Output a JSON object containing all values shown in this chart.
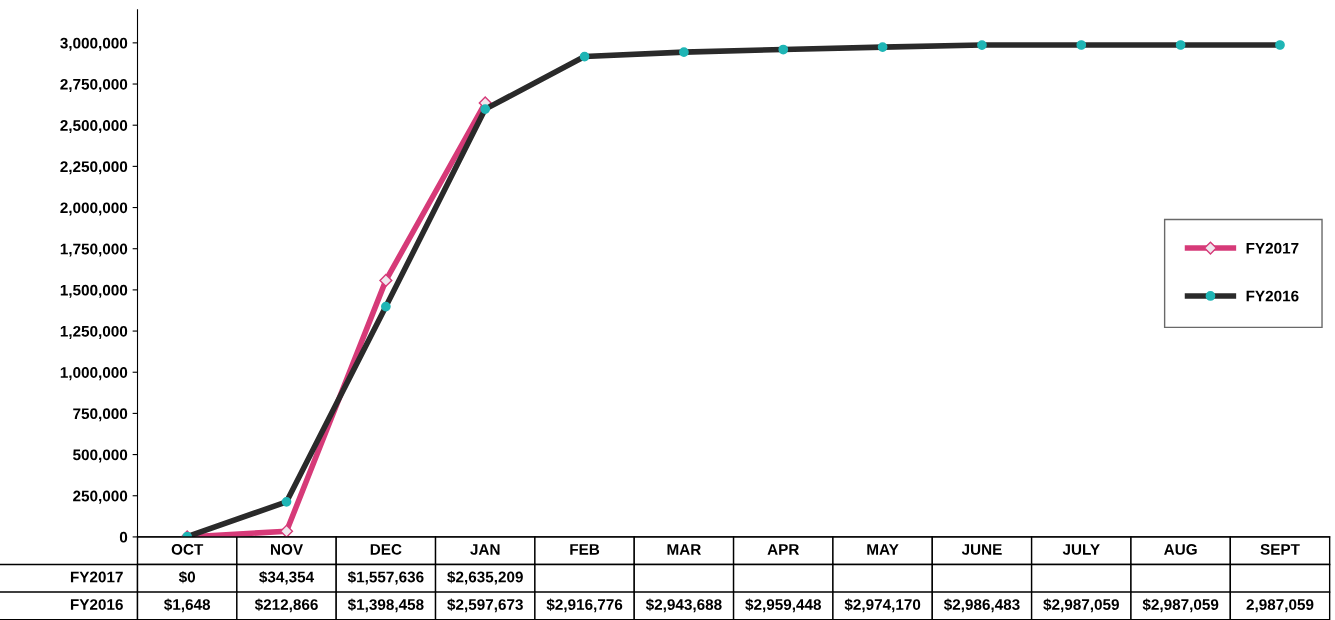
{
  "chart_data": {
    "type": "line",
    "categories": [
      "OCT",
      "NOV",
      "DEC",
      "JAN",
      "FEB",
      "MAR",
      "APR",
      "MAY",
      "JUNE",
      "JULY",
      "AUG",
      "SEPT"
    ],
    "series": [
      {
        "name": "FY2017",
        "color": "#d63a78",
        "marker": "diamond",
        "values": [
          0,
          34354,
          1557636,
          2635209,
          null,
          null,
          null,
          null,
          null,
          null,
          null,
          null
        ],
        "value_labels": [
          "$0",
          "$34,354",
          "$1,557,636",
          "$2,635,209",
          null,
          null,
          null,
          null,
          null,
          null,
          null,
          null
        ]
      },
      {
        "name": "FY2016",
        "color": "#2a2a2a",
        "marker": "circle",
        "values": [
          1648,
          212866,
          1398458,
          2597673,
          2916776,
          2943688,
          2959448,
          2974170,
          2986483,
          2987059,
          2987059,
          2987059
        ],
        "value_labels": [
          "$1,648",
          "$212,866",
          "$1,398,458",
          "$2,597,673",
          "$2,916,776",
          "$2,943,688",
          "$2,959,448",
          "$2,974,170",
          "$2,986,483",
          "$2,987,059",
          "$2,987,059",
          "2,987,059"
        ]
      }
    ],
    "ylim": [
      0,
      3200000
    ],
    "yticks": [
      0,
      {
        "value": 250000,
        "label": "250,000"
      },
      {
        "value": 500000,
        "label": "500,000"
      },
      {
        "value": 750000,
        "label": "750,000"
      },
      {
        "value": 1000000,
        "label": "1,000,000"
      },
      {
        "value": 1250000,
        "label": "1,250,000"
      },
      {
        "value": 1500000,
        "label": "1,500,000"
      },
      {
        "value": 1750000,
        "label": "1,750,000"
      },
      {
        "value": 2000000,
        "label": "2,000,000"
      },
      {
        "value": 2250000,
        "label": "2,250,000"
      },
      {
        "value": 2500000,
        "label": "2,500,000"
      },
      {
        "value": 2750000,
        "label": "2,750,000"
      },
      {
        "value": 3000000,
        "label": "3,000,000"
      }
    ],
    "grid": false,
    "legend": "center right",
    "tick_labels": "y"
  }
}
